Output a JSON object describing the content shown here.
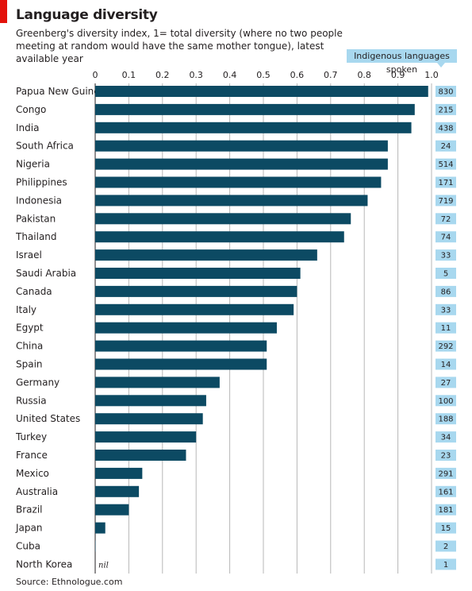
{
  "header": {
    "title": "Language diversity",
    "subtitle": "Greenberg's diversity index, 1= total diversity (where no two people meeting at random would have the same mother tongue), latest available year"
  },
  "legend": {
    "languages_label": "Indigenous languages spoken"
  },
  "footer": {
    "source": "Source: Ethnologue.com"
  },
  "colors": {
    "bar": "#0c4a63",
    "languages_box": "#a8d8ef",
    "accent": "#e3120b",
    "gridline": "#b7b7b7"
  },
  "chart_data": {
    "type": "bar",
    "orientation": "horizontal",
    "title": "Language diversity",
    "subtitle": "Greenberg's diversity index, 1= total diversity (where no two people meeting at random would have the same mother tongue), latest available year",
    "xlim": [
      0,
      1.0
    ],
    "x_ticks": [
      "0",
      "0.1",
      "0.2",
      "0.3",
      "0.4",
      "0.5",
      "0.6",
      "0.7",
      "0.8",
      "0.9",
      "1.0"
    ],
    "grid": true,
    "categories": [
      "Papua New Guinea",
      "Congo",
      "India",
      "South Africa",
      "Nigeria",
      "Philippines",
      "Indonesia",
      "Pakistan",
      "Thailand",
      "Israel",
      "Saudi Arabia",
      "Canada",
      "Italy",
      "Egypt",
      "China",
      "Spain",
      "Germany",
      "Russia",
      "United States",
      "Turkey",
      "France",
      "Mexico",
      "Australia",
      "Brazil",
      "Japan",
      "Cuba",
      "North Korea"
    ],
    "values": [
      0.99,
      0.95,
      0.94,
      0.87,
      0.87,
      0.85,
      0.81,
      0.76,
      0.74,
      0.66,
      0.61,
      0.6,
      0.59,
      0.54,
      0.51,
      0.51,
      0.37,
      0.33,
      0.32,
      0.3,
      0.27,
      0.14,
      0.13,
      0.1,
      0.03,
      0.001,
      0
    ],
    "value_labels": [
      "",
      "",
      "",
      "",
      "",
      "",
      "",
      "",
      "",
      "",
      "",
      "",
      "",
      "",
      "",
      "",
      "",
      "",
      "",
      "",
      "",
      "",
      "",
      "",
      "",
      "",
      "nil"
    ],
    "languages_spoken": [
      "830",
      "215",
      "438",
      "24",
      "514",
      "171",
      "719",
      "72",
      "74",
      "33",
      "5",
      "86",
      "33",
      "11",
      "292",
      "14",
      "27",
      "100",
      "188",
      "34",
      "23",
      "291",
      "161",
      "181",
      "15",
      "2",
      "1"
    ]
  }
}
